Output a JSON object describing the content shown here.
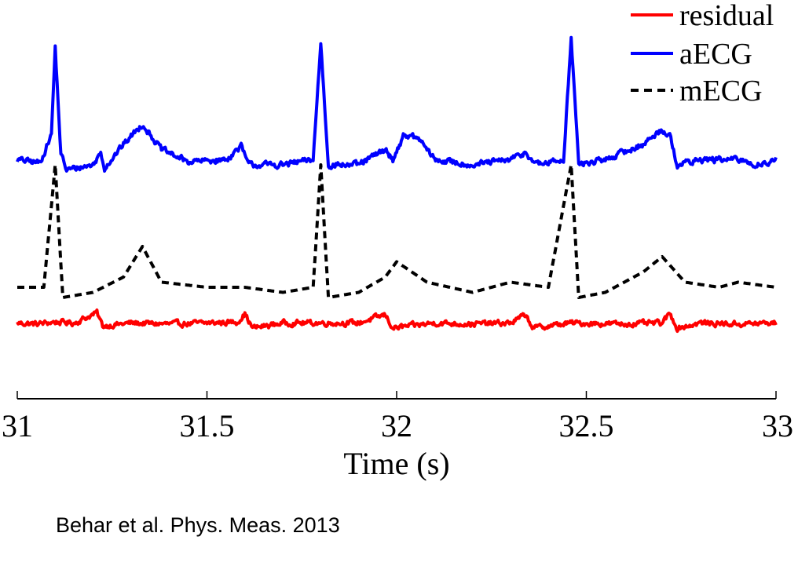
{
  "chart_data": {
    "type": "line",
    "title": "",
    "xlabel": "Time (s)",
    "ylabel": "",
    "xlim": [
      31,
      33
    ],
    "xticks": [
      31,
      31.5,
      32,
      32.5,
      33
    ],
    "x_tick_labels": [
      "31",
      "31.5",
      "32",
      "32.5",
      "33"
    ],
    "grid": false,
    "legend_position": "top-right",
    "y_axis_visible": false,
    "series": [
      {
        "name": "residual",
        "color": "#ff0000",
        "line_style": "solid",
        "baseline": -0.55,
        "beats": [
          31.1,
          31.8,
          32.46
        ],
        "points": [
          [
            31.0,
            -0.55
          ],
          [
            31.05,
            -0.56
          ],
          [
            31.1,
            -0.54
          ],
          [
            31.15,
            -0.55
          ],
          [
            31.21,
            -0.45
          ],
          [
            31.225,
            -0.58
          ],
          [
            31.3,
            -0.55
          ],
          [
            31.4,
            -0.56
          ],
          [
            31.5,
            -0.55
          ],
          [
            31.58,
            -0.54
          ],
          [
            31.6,
            -0.46
          ],
          [
            31.62,
            -0.6
          ],
          [
            31.7,
            -0.55
          ],
          [
            31.8,
            -0.55
          ],
          [
            31.9,
            -0.55
          ],
          [
            31.97,
            -0.47
          ],
          [
            31.99,
            -0.6
          ],
          [
            32.1,
            -0.55
          ],
          [
            32.2,
            -0.56
          ],
          [
            32.3,
            -0.55
          ],
          [
            32.34,
            -0.47
          ],
          [
            32.36,
            -0.6
          ],
          [
            32.46,
            -0.55
          ],
          [
            32.6,
            -0.56
          ],
          [
            32.7,
            -0.55
          ],
          [
            32.72,
            -0.46
          ],
          [
            32.74,
            -0.6
          ],
          [
            32.8,
            -0.55
          ],
          [
            32.9,
            -0.56
          ],
          [
            33.0,
            -0.55
          ]
        ]
      },
      {
        "name": "aECG",
        "color": "#0000ff",
        "line_style": "solid",
        "baseline": 1.05,
        "beats": [
          31.1,
          31.8,
          32.46
        ],
        "points": [
          [
            31.0,
            1.05
          ],
          [
            31.06,
            1.02
          ],
          [
            31.09,
            1.3
          ],
          [
            31.1,
            2.15
          ],
          [
            31.115,
            1.1
          ],
          [
            31.13,
            0.95
          ],
          [
            31.2,
            1.0
          ],
          [
            31.22,
            1.12
          ],
          [
            31.23,
            0.97
          ],
          [
            31.28,
            1.2
          ],
          [
            31.33,
            1.4
          ],
          [
            31.38,
            1.15
          ],
          [
            31.45,
            1.03
          ],
          [
            31.55,
            1.05
          ],
          [
            31.59,
            1.18
          ],
          [
            31.61,
            1.0
          ],
          [
            31.7,
            1.0
          ],
          [
            31.78,
            1.05
          ],
          [
            31.8,
            2.2
          ],
          [
            31.82,
            1.0
          ],
          [
            31.9,
            1.0
          ],
          [
            31.97,
            1.15
          ],
          [
            31.99,
            1.05
          ],
          [
            32.02,
            1.3
          ],
          [
            32.06,
            1.25
          ],
          [
            32.1,
            1.05
          ],
          [
            32.2,
            1.0
          ],
          [
            32.3,
            1.05
          ],
          [
            32.34,
            1.12
          ],
          [
            32.37,
            1.0
          ],
          [
            32.44,
            1.05
          ],
          [
            32.46,
            2.25
          ],
          [
            32.48,
            1.0
          ],
          [
            32.55,
            1.05
          ],
          [
            32.65,
            1.2
          ],
          [
            32.7,
            1.35
          ],
          [
            32.72,
            1.28
          ],
          [
            32.74,
            1.0
          ],
          [
            32.8,
            1.05
          ],
          [
            32.9,
            1.05
          ],
          [
            32.95,
            1.0
          ],
          [
            33.0,
            1.05
          ]
        ]
      },
      {
        "name": "mECG",
        "color": "#000000",
        "line_style": "dashed",
        "baseline": -0.2,
        "beats": [
          31.1,
          31.8,
          32.46
        ],
        "points": [
          [
            31.0,
            -0.2
          ],
          [
            31.07,
            -0.2
          ],
          [
            31.1,
            1.0
          ],
          [
            31.12,
            -0.3
          ],
          [
            31.2,
            -0.25
          ],
          [
            31.28,
            -0.1
          ],
          [
            31.33,
            0.2
          ],
          [
            31.38,
            -0.15
          ],
          [
            31.5,
            -0.2
          ],
          [
            31.6,
            -0.2
          ],
          [
            31.7,
            -0.25
          ],
          [
            31.78,
            -0.2
          ],
          [
            31.8,
            1.0
          ],
          [
            31.82,
            -0.3
          ],
          [
            31.9,
            -0.25
          ],
          [
            31.97,
            -0.1
          ],
          [
            32.0,
            0.05
          ],
          [
            32.08,
            -0.15
          ],
          [
            32.2,
            -0.25
          ],
          [
            32.3,
            -0.15
          ],
          [
            32.4,
            -0.2
          ],
          [
            32.46,
            1.0
          ],
          [
            32.48,
            -0.3
          ],
          [
            32.55,
            -0.25
          ],
          [
            32.65,
            -0.05
          ],
          [
            32.7,
            0.1
          ],
          [
            32.76,
            -0.15
          ],
          [
            32.85,
            -0.2
          ],
          [
            32.9,
            -0.15
          ],
          [
            33.0,
            -0.2
          ]
        ]
      }
    ]
  },
  "citation": "Behar et al. Phys. Meas. 2013"
}
